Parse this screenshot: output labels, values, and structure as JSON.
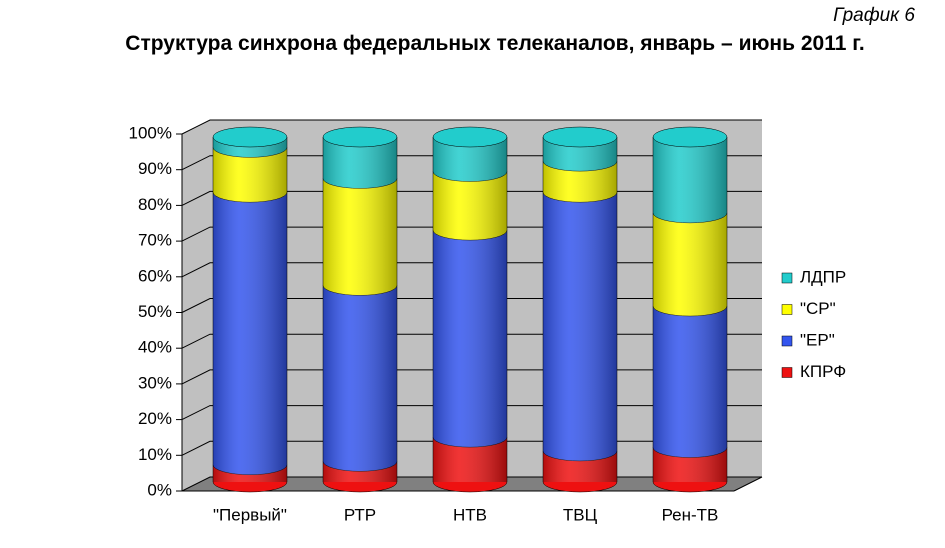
{
  "chart_data": {
    "type": "bar",
    "stacked": true,
    "subtitle": "График 6",
    "title": "Структура синхрона федеральных телеканалов, январь – июнь 2011 г.",
    "categories": [
      "\"Первый\"",
      "РТР",
      "НТВ",
      "ТВЦ",
      "Рен-ТВ"
    ],
    "series": [
      {
        "name": "КПРФ",
        "color": "#ee1111",
        "values": [
          5,
          6,
          13,
          9,
          10
        ]
      },
      {
        "name": "\"ЕР\"",
        "color": "#3355ee",
        "values": [
          79,
          51,
          60,
          75,
          41
        ]
      },
      {
        "name": "\"СР\"",
        "color": "#ffff00",
        "values": [
          13,
          31,
          17,
          9,
          27
        ]
      },
      {
        "name": "ЛДПР",
        "color": "#22cccc",
        "values": [
          3,
          12,
          10,
          7,
          22
        ]
      }
    ],
    "ylim": [
      0,
      100
    ],
    "yticks": [
      {
        "value": 0,
        "label": "0%"
      },
      {
        "value": 10,
        "label": "10%"
      },
      {
        "value": 20,
        "label": "20%"
      },
      {
        "value": 30,
        "label": "30%"
      },
      {
        "value": 40,
        "label": "40%"
      },
      {
        "value": 50,
        "label": "50%"
      },
      {
        "value": 60,
        "label": "60%"
      },
      {
        "value": 70,
        "label": "70%"
      },
      {
        "value": 80,
        "label": "80%"
      },
      {
        "value": 90,
        "label": "90%"
      },
      {
        "value": 100,
        "label": "100%"
      }
    ],
    "grid": true,
    "legend": "right"
  }
}
